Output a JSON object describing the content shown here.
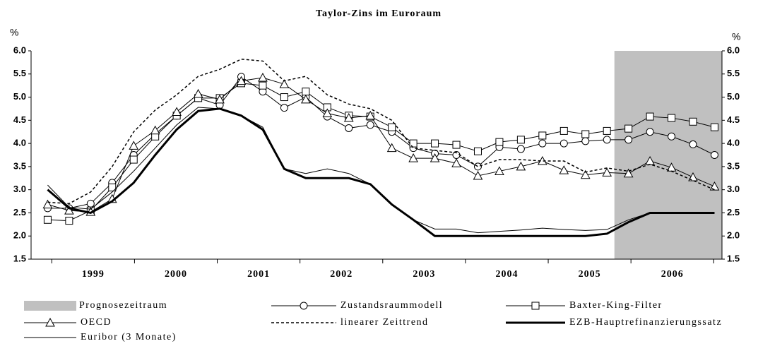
{
  "chart_data": {
    "type": "line",
    "title": "Taylor-Zins im Euroraum",
    "y_label": "%",
    "y2_label": "%",
    "x": [
      1998.95,
      1999.21,
      1999.47,
      1999.73,
      1999.99,
      2000.25,
      2000.51,
      2000.77,
      2001.03,
      2001.29,
      2001.55,
      2001.81,
      2002.07,
      2002.33,
      2002.59,
      2002.85,
      2003.11,
      2003.37,
      2003.63,
      2003.89,
      2004.15,
      2004.41,
      2004.67,
      2004.93,
      2005.19,
      2005.45,
      2005.71,
      2005.97,
      2006.23,
      2006.49,
      2006.75,
      2007.01
    ],
    "xlim": [
      1998.75,
      2007.1
    ],
    "xticks": [
      {
        "value": 1999.5,
        "label": "1999"
      },
      {
        "value": 2000.5,
        "label": "2000"
      },
      {
        "value": 2001.5,
        "label": "2001"
      },
      {
        "value": 2002.5,
        "label": "2002"
      },
      {
        "value": 2003.5,
        "label": "2003"
      },
      {
        "value": 2004.5,
        "label": "2004"
      },
      {
        "value": 2005.5,
        "label": "2005"
      },
      {
        "value": 2006.5,
        "label": "2006"
      }
    ],
    "ylim": [
      1.5,
      6.0
    ],
    "yticks": [
      {
        "value": 1.5,
        "label": "1.5"
      },
      {
        "value": 2.0,
        "label": "2.0"
      },
      {
        "value": 2.5,
        "label": "2.5"
      },
      {
        "value": 3.0,
        "label": "3.0"
      },
      {
        "value": 3.5,
        "label": "3.5"
      },
      {
        "value": 4.0,
        "label": "4.0"
      },
      {
        "value": 4.5,
        "label": "4.5"
      },
      {
        "value": 5.0,
        "label": "5.0"
      },
      {
        "value": 5.5,
        "label": "5.5"
      },
      {
        "value": 6.0,
        "label": "6.0"
      }
    ],
    "y2lim": [
      1.5,
      6.0
    ],
    "y2ticks": [
      {
        "value": 1.5,
        "label": "1.5"
      },
      {
        "value": 2.0,
        "label": "2.0"
      },
      {
        "value": 2.5,
        "label": "2.5"
      },
      {
        "value": 3.0,
        "label": "3.0"
      },
      {
        "value": 3.5,
        "label": "3.5"
      },
      {
        "value": 4.0,
        "label": "4.0"
      },
      {
        "value": 4.5,
        "label": "4.5"
      },
      {
        "value": 5.0,
        "label": "5.0"
      },
      {
        "value": 5.5,
        "label": "5.5"
      },
      {
        "value": 6.0,
        "label": "6.0"
      }
    ],
    "forecast": {
      "name": "Prognosezeitraum",
      "x": [
        2005.8,
        2007.1
      ],
      "color": "#c0c0c0"
    },
    "series": [
      {
        "name": "Zustandsraummodell",
        "color": "#000000",
        "marker": "circle",
        "width": 1,
        "values": [
          2.6,
          2.6,
          2.7,
          3.15,
          3.75,
          4.2,
          4.6,
          4.98,
          4.83,
          5.44,
          5.12,
          4.77,
          5.0,
          4.58,
          4.33,
          4.4,
          4.25,
          3.9,
          3.78,
          3.75,
          3.5,
          3.92,
          3.88,
          4.0,
          4.0,
          4.05,
          4.08,
          4.08,
          4.25,
          4.15,
          3.98,
          3.75
        ]
      },
      {
        "name": "Baxter-King-Filter",
        "color": "#000000",
        "marker": "square",
        "width": 1,
        "values": [
          2.35,
          2.33,
          2.55,
          3.05,
          3.65,
          4.15,
          4.6,
          4.98,
          4.98,
          5.3,
          5.25,
          5.0,
          5.12,
          4.78,
          4.6,
          4.58,
          4.35,
          4.0,
          4.0,
          3.97,
          3.83,
          4.03,
          4.08,
          4.17,
          4.27,
          4.2,
          4.27,
          4.32,
          4.58,
          4.55,
          4.47,
          4.35
        ]
      },
      {
        "name": "OECD",
        "color": "#000000",
        "marker": "triangle",
        "width": 1,
        "values": [
          2.68,
          2.55,
          2.52,
          2.8,
          3.95,
          4.28,
          4.68,
          5.07,
          4.95,
          5.35,
          5.42,
          5.28,
          4.95,
          4.65,
          4.55,
          4.6,
          3.9,
          3.68,
          3.68,
          3.57,
          3.3,
          3.4,
          3.5,
          3.62,
          3.42,
          3.32,
          3.37,
          3.35,
          3.62,
          3.48,
          3.27,
          3.07
        ]
      },
      {
        "name": "linearer Zeittrend",
        "color": "#000000",
        "dash": true,
        "width": 1.5,
        "values": [
          2.73,
          2.7,
          2.95,
          3.5,
          4.25,
          4.72,
          5.05,
          5.45,
          5.6,
          5.82,
          5.78,
          5.35,
          5.45,
          5.05,
          4.85,
          4.75,
          4.5,
          3.9,
          3.85,
          3.8,
          3.5,
          3.65,
          3.65,
          3.62,
          3.62,
          3.38,
          3.47,
          3.4,
          3.55,
          3.4,
          3.2,
          3.0
        ]
      },
      {
        "name": "EZB-Hauptrefinanzierungssatz",
        "color": "#000000",
        "width": 3,
        "values": [
          3.0,
          2.6,
          2.5,
          2.75,
          3.15,
          3.75,
          4.3,
          4.7,
          4.75,
          4.6,
          4.3,
          3.45,
          3.25,
          3.25,
          3.25,
          3.12,
          2.68,
          2.35,
          2.0,
          2.0,
          2.0,
          2.0,
          2.0,
          2.0,
          2.0,
          2.0,
          2.05,
          2.3,
          2.5,
          2.5,
          2.5,
          2.5
        ]
      },
      {
        "name": "Euribor (3 Monate)",
        "color": "#000000",
        "width": 1,
        "values": [
          3.1,
          2.62,
          2.58,
          2.95,
          3.4,
          3.9,
          4.4,
          4.78,
          4.75,
          4.6,
          4.35,
          3.45,
          3.35,
          3.45,
          3.35,
          3.12,
          2.68,
          2.35,
          2.15,
          2.15,
          2.07,
          2.1,
          2.13,
          2.17,
          2.14,
          2.12,
          2.14,
          2.35,
          2.5,
          2.5,
          2.5,
          2.5
        ]
      }
    ]
  }
}
